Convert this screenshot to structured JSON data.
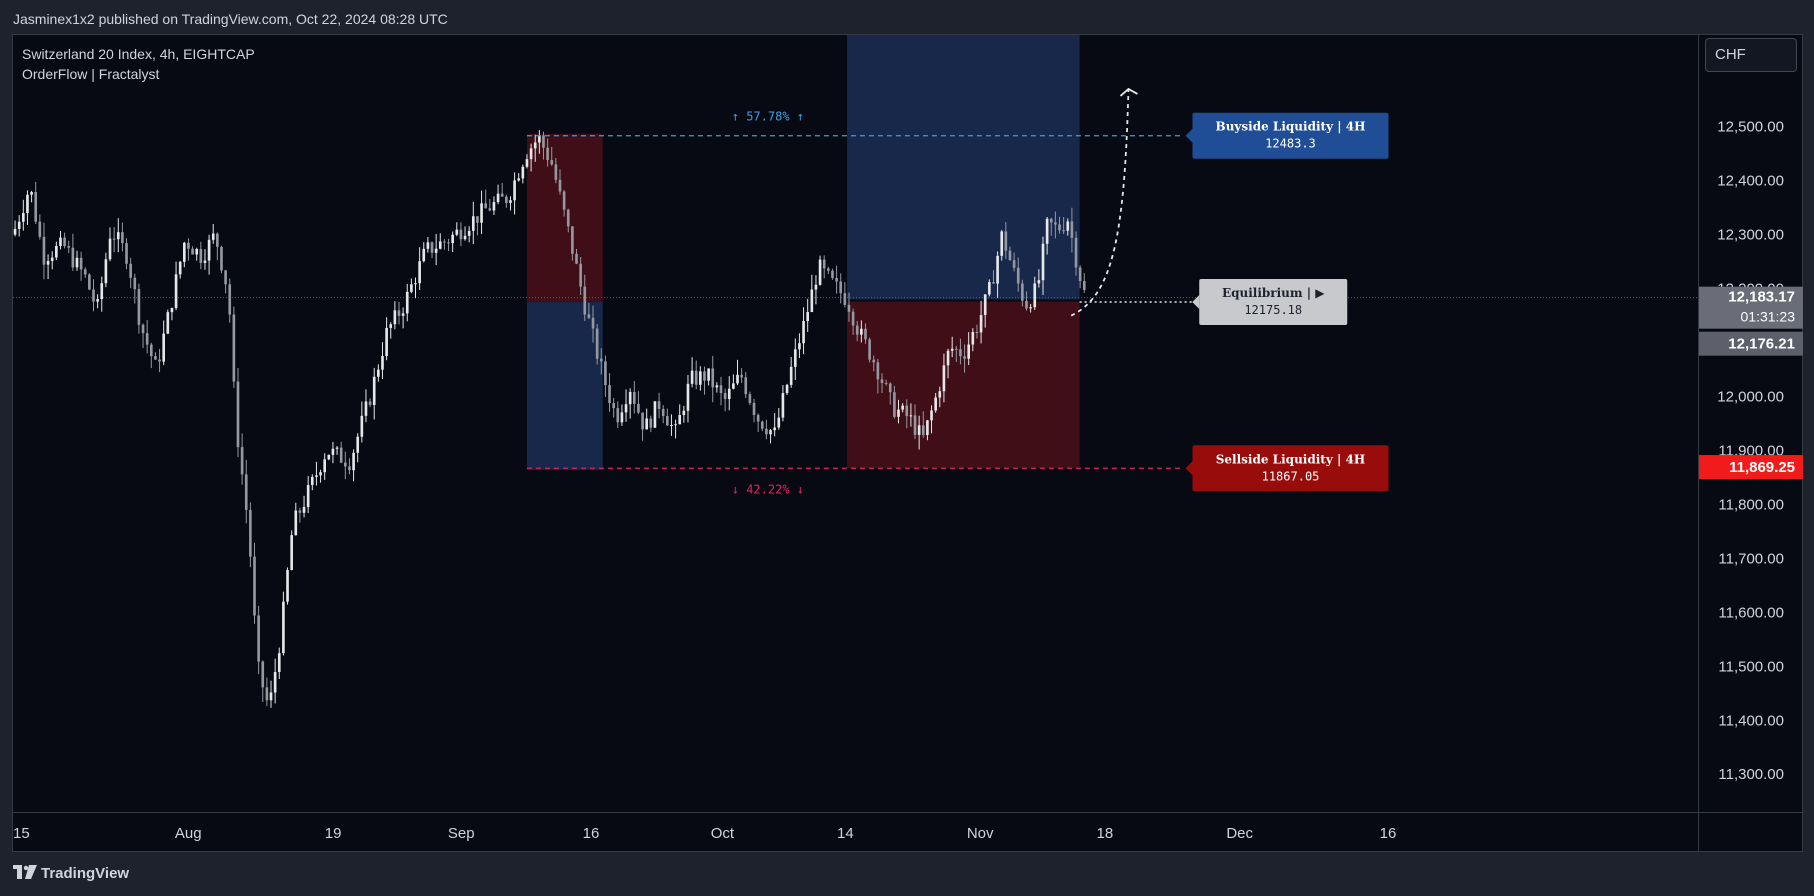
{
  "header": {
    "published_by": "Jasminex1x2 published on TradingView.com, Oct 22, 2024 08:28 UTC"
  },
  "legend": {
    "symbol_line": "Switzerland 20 Index, 4h, EIGHTCAP",
    "indicator_line": "OrderFlow | Fractalyst"
  },
  "currency_button": {
    "label": "CHF"
  },
  "footer": {
    "brand": "TradingView"
  },
  "colors": {
    "bull_zone": "#1a2e56",
    "bear_zone": "#4a0f18",
    "buyside": "#1f4e96",
    "sellside": "#980c0c",
    "price_tag": "#6a6d78",
    "alert_tag": "#f21b1b"
  },
  "chart_data": {
    "type": "candlestick",
    "symbol": "Switzerland 20 Index",
    "timeframe": "4h",
    "exchange": "EIGHTCAP",
    "currency": "CHF",
    "ylim": [
      11230,
      12670
    ],
    "y_ticks": [
      {
        "value": 12500,
        "label": "12,500.00"
      },
      {
        "value": 12400,
        "label": "12,400.00"
      },
      {
        "value": 12300,
        "label": "12,300.00"
      },
      {
        "value": 12200,
        "label": "12,200.00"
      },
      {
        "value": 12000,
        "label": "12,000.00"
      },
      {
        "value": 11900,
        "label": "11,900.00"
      },
      {
        "value": 11800,
        "label": "11,800.00"
      },
      {
        "value": 11700,
        "label": "11,700.00"
      },
      {
        "value": 11600,
        "label": "11,600.00"
      },
      {
        "value": 11500,
        "label": "11,500.00"
      },
      {
        "value": 11400,
        "label": "11,400.00"
      },
      {
        "value": 11300,
        "label": "11,300.00"
      }
    ],
    "x_ticks": [
      "15",
      "Aug",
      "19",
      "Sep",
      "16",
      "Oct",
      "14",
      "Nov",
      "18",
      "Dec",
      "16"
    ],
    "price_path": [
      {
        "x": 0.0,
        "y": 12300
      },
      {
        "x": 0.01,
        "y": 12390
      },
      {
        "x": 0.018,
        "y": 12260
      },
      {
        "x": 0.03,
        "y": 12280
      },
      {
        "x": 0.043,
        "y": 12220
      },
      {
        "x": 0.05,
        "y": 12160
      },
      {
        "x": 0.058,
        "y": 12310
      },
      {
        "x": 0.068,
        "y": 12260
      },
      {
        "x": 0.076,
        "y": 12130
      },
      {
        "x": 0.085,
        "y": 12050
      },
      {
        "x": 0.093,
        "y": 12160
      },
      {
        "x": 0.102,
        "y": 12290
      },
      {
        "x": 0.112,
        "y": 12260
      },
      {
        "x": 0.12,
        "y": 12300
      },
      {
        "x": 0.128,
        "y": 12190
      },
      {
        "x": 0.132,
        "y": 11960
      },
      {
        "x": 0.14,
        "y": 11750
      },
      {
        "x": 0.145,
        "y": 11500
      },
      {
        "x": 0.152,
        "y": 11420
      },
      {
        "x": 0.159,
        "y": 11560
      },
      {
        "x": 0.166,
        "y": 11760
      },
      {
        "x": 0.175,
        "y": 11820
      },
      {
        "x": 0.186,
        "y": 11900
      },
      {
        "x": 0.2,
        "y": 11880
      },
      {
        "x": 0.212,
        "y": 12000
      },
      {
        "x": 0.222,
        "y": 12120
      },
      {
        "x": 0.232,
        "y": 12170
      },
      {
        "x": 0.245,
        "y": 12270
      },
      {
        "x": 0.258,
        "y": 12290
      },
      {
        "x": 0.27,
        "y": 12320
      },
      {
        "x": 0.282,
        "y": 12350
      },
      {
        "x": 0.294,
        "y": 12370
      },
      {
        "x": 0.304,
        "y": 12450
      },
      {
        "x": 0.312,
        "y": 12480
      },
      {
        "x": 0.32,
        "y": 12430
      },
      {
        "x": 0.33,
        "y": 12300
      },
      {
        "x": 0.34,
        "y": 12160
      },
      {
        "x": 0.35,
        "y": 12040
      },
      {
        "x": 0.358,
        "y": 11960
      },
      {
        "x": 0.366,
        "y": 12020
      },
      {
        "x": 0.375,
        "y": 11940
      },
      {
        "x": 0.384,
        "y": 11990
      },
      {
        "x": 0.393,
        "y": 11930
      },
      {
        "x": 0.402,
        "y": 12030
      },
      {
        "x": 0.412,
        "y": 12040
      },
      {
        "x": 0.422,
        "y": 11990
      },
      {
        "x": 0.432,
        "y": 12040
      },
      {
        "x": 0.442,
        "y": 11960
      },
      {
        "x": 0.452,
        "y": 11930
      },
      {
        "x": 0.46,
        "y": 12030
      },
      {
        "x": 0.47,
        "y": 12140
      },
      {
        "x": 0.478,
        "y": 12240
      },
      {
        "x": 0.486,
        "y": 12210
      },
      {
        "x": 0.495,
        "y": 12180
      },
      {
        "x": 0.502,
        "y": 12120
      },
      {
        "x": 0.512,
        "y": 12060
      },
      {
        "x": 0.522,
        "y": 11980
      },
      {
        "x": 0.532,
        "y": 11960
      },
      {
        "x": 0.54,
        "y": 11920
      },
      {
        "x": 0.548,
        "y": 12000
      },
      {
        "x": 0.556,
        "y": 12090
      },
      {
        "x": 0.564,
        "y": 12080
      },
      {
        "x": 0.572,
        "y": 12130
      },
      {
        "x": 0.58,
        "y": 12200
      },
      {
        "x": 0.587,
        "y": 12300
      },
      {
        "x": 0.594,
        "y": 12230
      },
      {
        "x": 0.601,
        "y": 12170
      },
      {
        "x": 0.608,
        "y": 12200
      },
      {
        "x": 0.614,
        "y": 12320
      },
      {
        "x": 0.62,
        "y": 12310
      },
      {
        "x": 0.626,
        "y": 12330
      },
      {
        "x": 0.632,
        "y": 12240
      },
      {
        "x": 0.637,
        "y": 12176
      }
    ],
    "zones": [
      {
        "name": "bear-zone-aug",
        "x0": 0.305,
        "x1": 0.35,
        "y_top": 12487,
        "y_bottom": 12175,
        "color": "#4a0f18"
      },
      {
        "name": "bull-zone-sep",
        "x0": 0.305,
        "x1": 0.35,
        "y_top": 12175,
        "y_bottom": 11864,
        "color": "#1a2e56"
      },
      {
        "name": "bull-zone-oct",
        "x0": 0.495,
        "x1": 0.633,
        "y_top": 12670,
        "y_bottom": 12180,
        "color": "#1a2e56"
      },
      {
        "name": "bear-zone-oct",
        "x0": 0.495,
        "x1": 0.633,
        "y_top": 12176,
        "y_bottom": 11867,
        "color": "#4a0f18"
      }
    ],
    "levels": [
      {
        "name": "buyside",
        "value": 12483.3,
        "label": "Buyside Liquidity | 4H",
        "value_text": "12483.3",
        "color": "#1f4e96"
      },
      {
        "name": "equilibrium",
        "value": 12175.18,
        "label": "Equilibrium | ▶",
        "value_text": "12175.18",
        "color": "#c8c9cd"
      },
      {
        "name": "sellside",
        "value": 11867.05,
        "label": "Sellside Liquidity | 4H",
        "value_text": "11867.05",
        "color": "#980c0c"
      }
    ],
    "percent_labels": {
      "upper": "↑ 57.78% ↑",
      "lower": "↓ 42.22% ↓"
    },
    "price_tags": [
      {
        "name": "last-price",
        "value": 12183.17,
        "label": "12,183.17",
        "sub": "01:31:23",
        "color": "#6a6d78"
      },
      {
        "name": "equilibrium-price",
        "value": 12176.21,
        "label": "12,176.21",
        "color": "#5d606b"
      },
      {
        "name": "sellside-price",
        "value": 11869.25,
        "label": "11,869.25",
        "color": "#f21b1b"
      }
    ],
    "projection": {
      "from_price": 12150,
      "to_price": 12570
    }
  }
}
